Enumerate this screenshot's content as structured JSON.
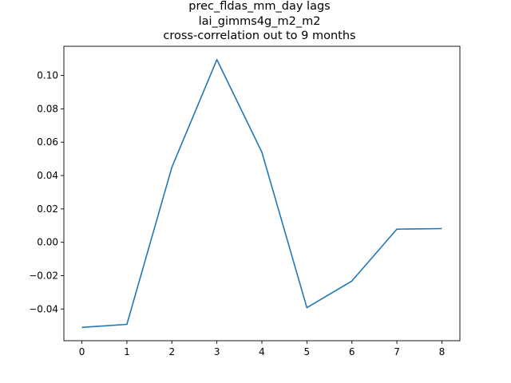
{
  "chart_data": {
    "type": "line",
    "title_lines": [
      "prec_fldas_mm_day lags",
      "lai_gimms4g_m2_m2",
      "cross-correlation out to 9 months"
    ],
    "xlabel": "",
    "ylabel": "",
    "x": [
      0,
      1,
      2,
      3,
      4,
      5,
      6,
      7,
      8
    ],
    "series": [
      {
        "values": [
          -0.051,
          -0.0492,
          0.045,
          0.1095,
          0.054,
          -0.0392,
          -0.0232,
          0.0079,
          0.0082
        ]
      }
    ],
    "xlim": [
      -0.4,
      8.4
    ],
    "ylim": [
      -0.059,
      0.1175
    ],
    "x_ticks": [
      0,
      1,
      2,
      3,
      4,
      5,
      6,
      7,
      8
    ],
    "y_ticks": [
      -0.04,
      -0.02,
      0.0,
      0.02,
      0.04,
      0.06,
      0.08,
      0.1
    ],
    "y_tick_labels": [
      "−0.04",
      "−0.02",
      "0.00",
      "0.02",
      "0.04",
      "0.06",
      "0.08",
      "0.10"
    ],
    "grid": false,
    "line_color": "#1f77b4"
  }
}
